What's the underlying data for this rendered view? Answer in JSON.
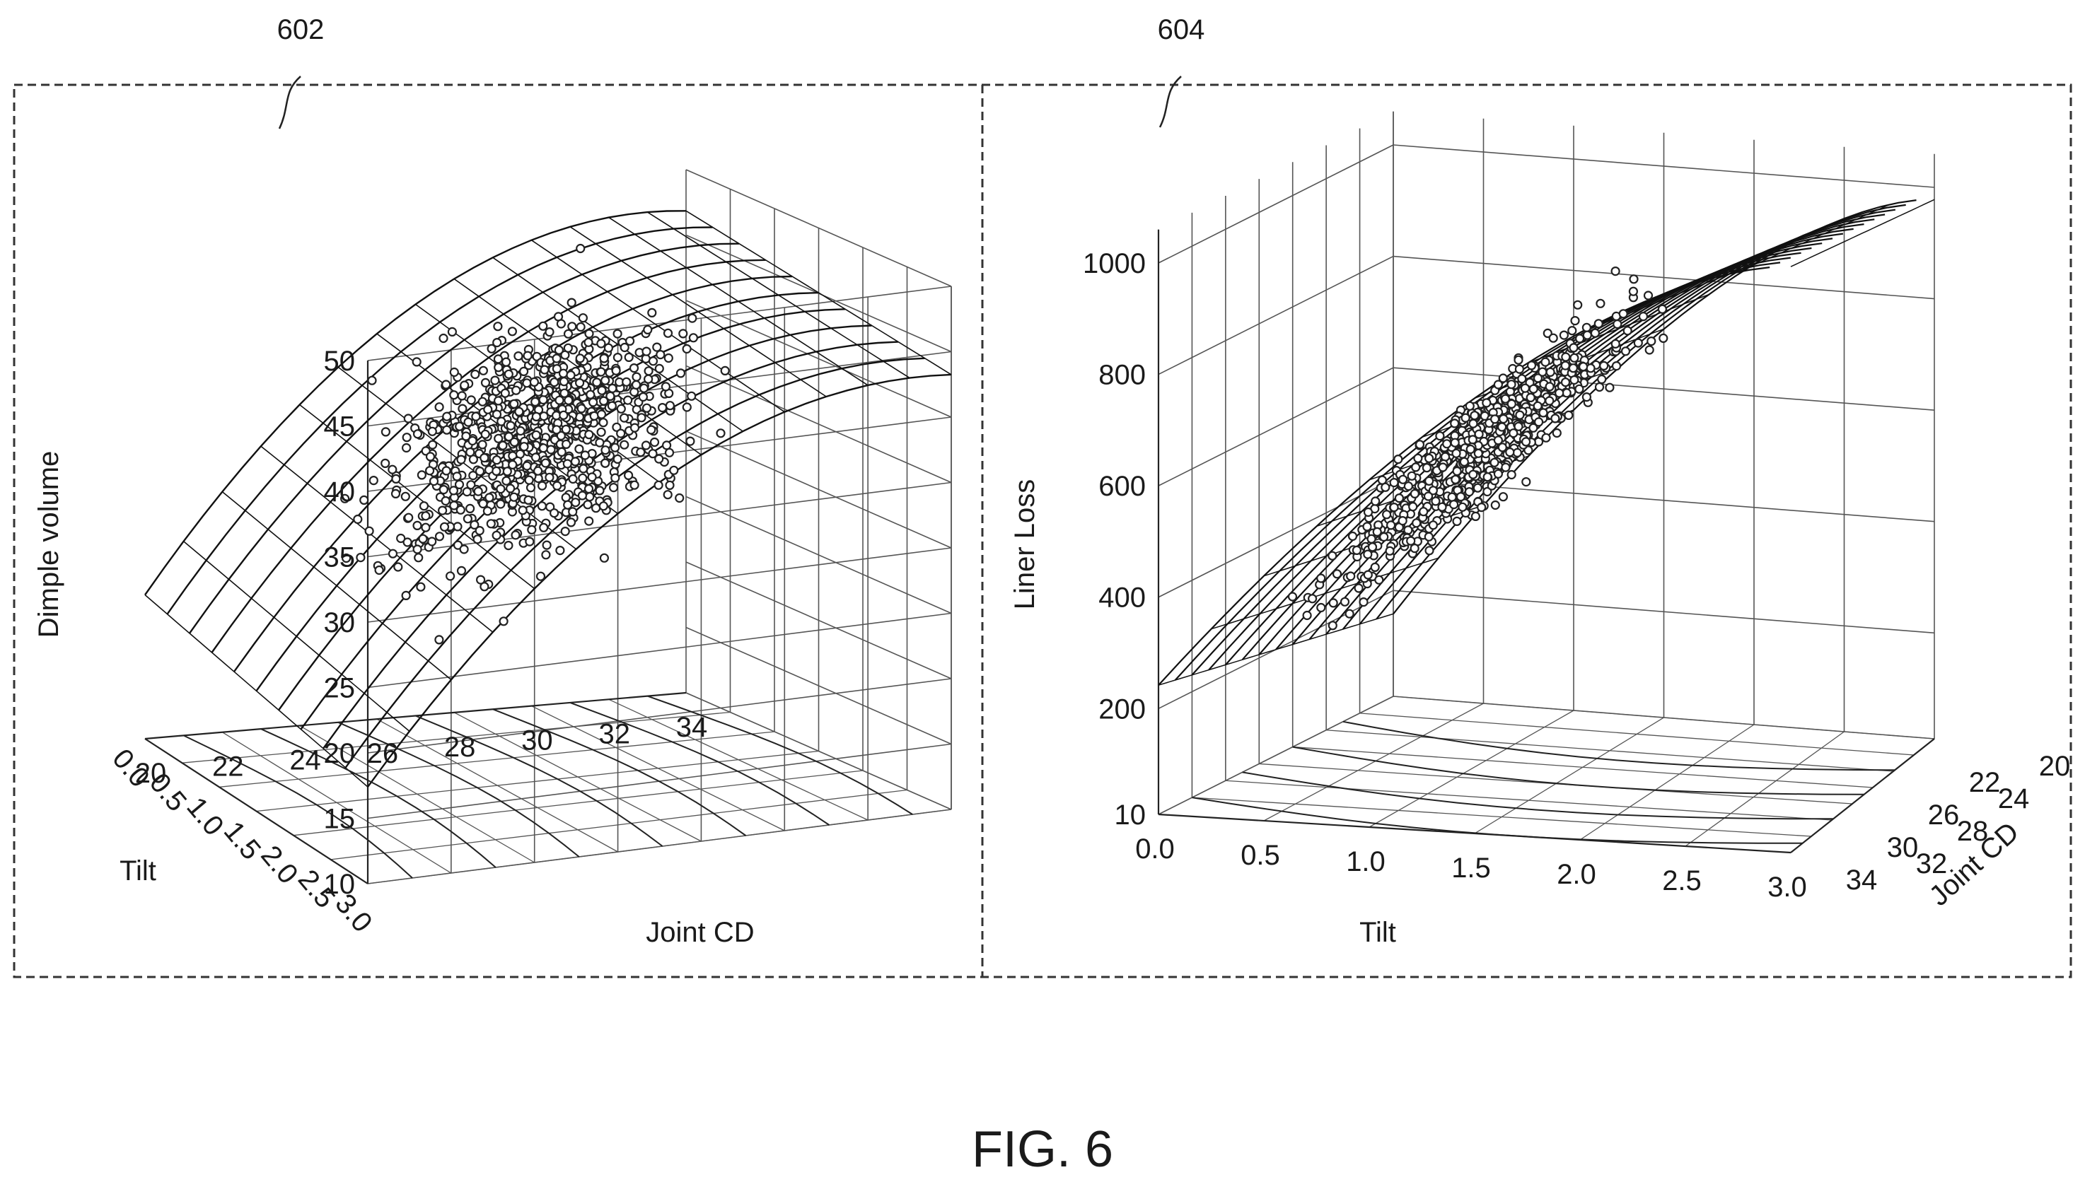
{
  "figure": {
    "caption": "FIG. 6",
    "ref_left": "602",
    "ref_right": "604"
  },
  "chart_data": [
    {
      "type": "scatter",
      "subtype": "3d-scatter-with-fitted-surface",
      "title": "",
      "xlabel": "Joint CD",
      "ylabel": "Tilt",
      "zlabel": "Dimple volume",
      "x_ticks": [
        "20",
        "22",
        "24",
        "26",
        "28",
        "30",
        "32",
        "34"
      ],
      "y_ticks": [
        "3.0",
        "2.5",
        "2.0",
        "1.5",
        "1.0",
        "0.5",
        "0.0"
      ],
      "z_ticks": [
        "50",
        "45",
        "40",
        "35",
        "30",
        "25",
        "20",
        "15",
        "10"
      ],
      "xlim": [
        20,
        34
      ],
      "ylim": [
        0,
        3
      ],
      "zlim": [
        10,
        50
      ],
      "grid": true,
      "legend": "none",
      "surface": "quadratic fit in Joint CD, rising from ~20 at Joint CD 20 to ~45 near Joint CD 32, weakly dependent on Tilt",
      "points_summary": {
        "count_approx": 900,
        "dense_cluster_center": {
          "joint_cd": 27,
          "tilt": 1.5,
          "dimple_volume": 33
        },
        "range_dimple_volume": [
          12,
          50
        ]
      }
    },
    {
      "type": "scatter",
      "subtype": "3d-scatter-with-fitted-surface",
      "title": "",
      "xlabel": "Tilt",
      "ylabel": "Joint CD",
      "zlabel": "Liner Loss",
      "x_ticks": [
        "0.0",
        "0.5",
        "1.0",
        "1.5",
        "2.0",
        "2.5",
        "3.0"
      ],
      "y_ticks": [
        "20",
        "22",
        "24",
        "26",
        "28",
        "30",
        "32",
        "34"
      ],
      "z_ticks": [
        "1000",
        "800",
        "600",
        "400",
        "200",
        "10"
      ],
      "xlim": [
        0,
        3
      ],
      "ylim": [
        20,
        34
      ],
      "zlim": [
        10,
        1000
      ],
      "grid": true,
      "legend": "none",
      "surface": "concave fit rising with Tilt from ~200 at Tilt 0 to ~1000 at Tilt 3",
      "points_summary": {
        "count_approx": 700,
        "dense_cluster_center": {
          "tilt": 1.0,
          "joint_cd": 26,
          "liner_loss": 800
        },
        "range_liner_loss": [
          150,
          1050
        ]
      }
    }
  ]
}
